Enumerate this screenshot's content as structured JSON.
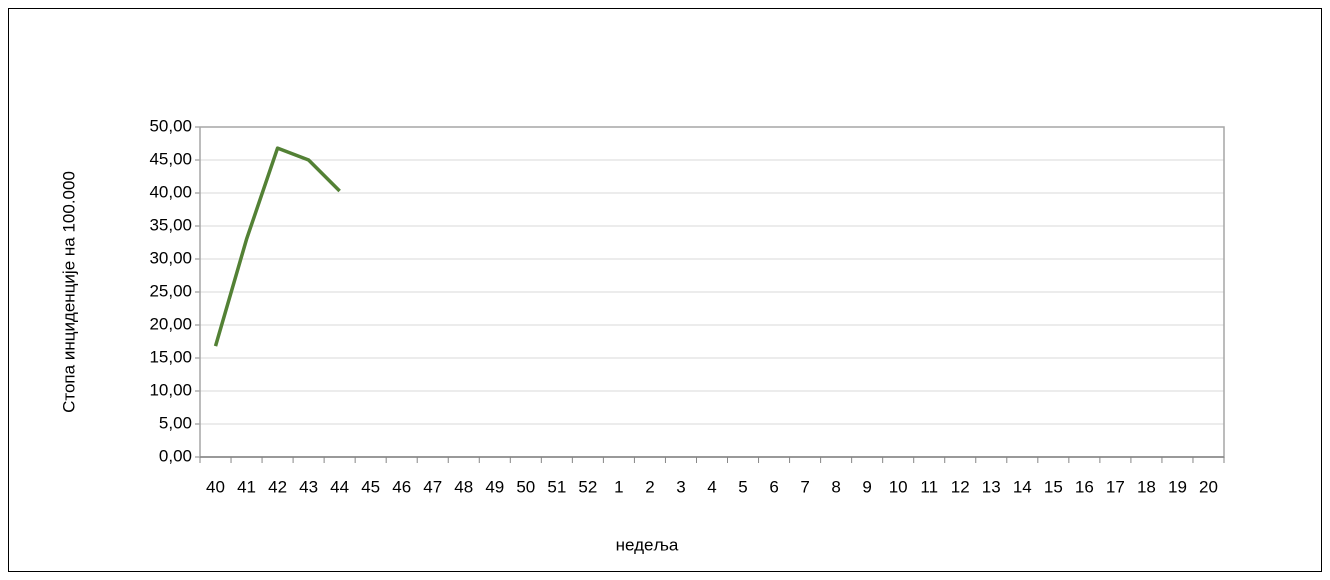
{
  "chart_data": {
    "type": "line",
    "x_label": "недеља",
    "y_label": "Стопа инциденције на 100.000",
    "categories": [
      "40",
      "41",
      "42",
      "43",
      "44",
      "45",
      "46",
      "47",
      "48",
      "49",
      "50",
      "51",
      "52",
      "1",
      "2",
      "3",
      "4",
      "5",
      "6",
      "7",
      "8",
      "9",
      "10",
      "11",
      "12",
      "13",
      "14",
      "15",
      "16",
      "17",
      "18",
      "19",
      "20"
    ],
    "values": [
      16.8,
      33.0,
      46.8,
      45.0,
      40.3,
      null,
      null,
      null,
      null,
      null,
      null,
      null,
      null,
      null,
      null,
      null,
      null,
      null,
      null,
      null,
      null,
      null,
      null,
      null,
      null,
      null,
      null,
      null,
      null,
      null,
      null,
      null,
      null
    ],
    "color": "#538135",
    "ylim": [
      0,
      50
    ],
    "yticks": [
      {
        "value": 0,
        "label": "0,00"
      },
      {
        "value": 5,
        "label": "5,00"
      },
      {
        "value": 10,
        "label": "10,00"
      },
      {
        "value": 15,
        "label": "15,00"
      },
      {
        "value": 20,
        "label": "20,00"
      },
      {
        "value": 25,
        "label": "25,00"
      },
      {
        "value": 30,
        "label": "30,00"
      },
      {
        "value": 35,
        "label": "35,00"
      },
      {
        "value": 40,
        "label": "40,00"
      },
      {
        "value": 45,
        "label": "45,00"
      },
      {
        "value": 50,
        "label": "50,00"
      }
    ],
    "grid": true
  }
}
